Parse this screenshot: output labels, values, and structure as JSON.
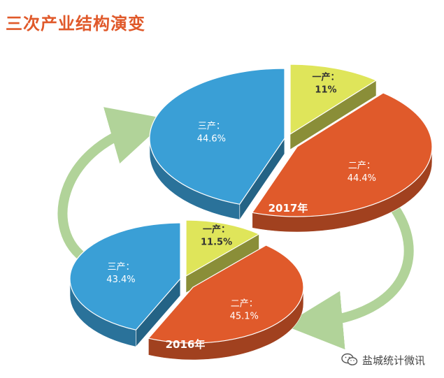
{
  "title": "三次产业结构演变",
  "watermark": "盐城统计微讯",
  "colors": {
    "primary": "#e05a2b",
    "secondary": "#3a9fd6",
    "tertiary": "#dfe55a",
    "arrow": "#a9cf8f",
    "title": "#e0592a"
  },
  "chart_data": [
    {
      "type": "pie",
      "year_label": "2017年",
      "slices": [
        {
          "name": "一产",
          "label": "一产：",
          "value": 11,
          "value_label": "11%",
          "color": "#dfe55a"
        },
        {
          "name": "二产",
          "label": "二产：",
          "value": 44.4,
          "value_label": "44.4%",
          "color": "#e05a2b"
        },
        {
          "name": "三产",
          "label": "三产：",
          "value": 44.6,
          "value_label": "44.6%",
          "color": "#3a9fd6"
        }
      ]
    },
    {
      "type": "pie",
      "year_label": "2016年",
      "slices": [
        {
          "name": "一产",
          "label": "一产：",
          "value": 11.5,
          "value_label": "11.5%",
          "color": "#dfe55a"
        },
        {
          "name": "二产",
          "label": "二产：",
          "value": 45.1,
          "value_label": "45.1%",
          "color": "#e05a2b"
        },
        {
          "name": "三产",
          "label": "三产：",
          "value": 43.4,
          "value_label": "43.4%",
          "color": "#3a9fd6"
        }
      ]
    }
  ]
}
